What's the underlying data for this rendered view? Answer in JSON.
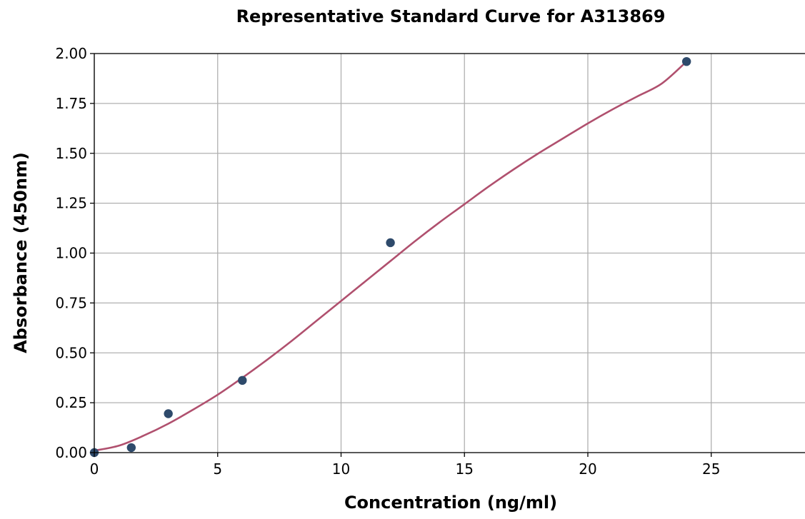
{
  "chart_data": {
    "type": "scatter",
    "title": "Representative Standard Curve for A313869",
    "xlabel": "Concentration (ng/ml)",
    "ylabel": "Absorbance (450nm)",
    "xlim": [
      0,
      28.8
    ],
    "ylim": [
      0,
      2.0
    ],
    "x_ticks": [
      0,
      5,
      10,
      15,
      20,
      25
    ],
    "x_tick_labels": [
      "0",
      "5",
      "10",
      "15",
      "20",
      "25"
    ],
    "y_ticks": [
      0,
      0.25,
      0.5,
      0.75,
      1.0,
      1.25,
      1.5,
      1.75,
      2.0
    ],
    "y_tick_labels": [
      "0.00",
      "0.25",
      "0.50",
      "0.75",
      "1.00",
      "1.25",
      "1.50",
      "1.75",
      "2.00"
    ],
    "grid": true,
    "series": [
      {
        "kind": "points",
        "color": "#2e4a6b",
        "x": [
          0,
          1.5,
          3,
          6,
          12,
          24
        ],
        "y": [
          0.0,
          0.025,
          0.195,
          0.362,
          1.052,
          1.96
        ]
      },
      {
        "kind": "fitted-curve",
        "color": "#b0506e",
        "x": [
          0,
          1,
          2,
          3,
          4,
          5,
          6,
          7,
          8,
          9,
          10,
          11,
          12,
          13,
          14,
          15,
          16,
          17,
          18,
          19,
          20,
          21,
          22,
          23,
          24
        ],
        "y": [
          0.01,
          0.035,
          0.085,
          0.145,
          0.215,
          0.29,
          0.375,
          0.465,
          0.56,
          0.66,
          0.76,
          0.86,
          0.96,
          1.06,
          1.155,
          1.245,
          1.335,
          1.42,
          1.5,
          1.575,
          1.65,
          1.72,
          1.785,
          1.85,
          1.96
        ]
      }
    ]
  }
}
